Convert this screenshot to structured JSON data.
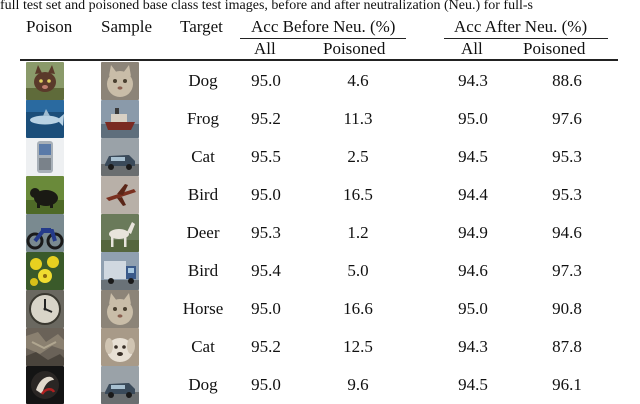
{
  "caption": "full test set and poisoned base class test images, before and after neutralization (Neu.) for full-s",
  "headers": {
    "poison": "Poison",
    "sample": "Sample",
    "target": "Target",
    "acc_before": "Acc Before Neu. (%)",
    "acc_after": "Acc After Neu. (%)",
    "all": "All",
    "poisoned": "Poisoned"
  },
  "rows": [
    {
      "poison_icon": "cat-face-thumbnail",
      "sample_icon": "cat-thumbnail",
      "target": "Dog",
      "before_all": "95.0",
      "before_poisoned": "4.6",
      "after_all": "94.3",
      "after_poisoned": "88.6"
    },
    {
      "poison_icon": "shark-thumbnail",
      "sample_icon": "ship-thumbnail",
      "target": "Frog",
      "before_all": "95.2",
      "before_poisoned": "11.3",
      "after_all": "95.0",
      "after_poisoned": "97.6"
    },
    {
      "poison_icon": "phone-thumbnail",
      "sample_icon": "car-thumbnail",
      "target": "Cat",
      "before_all": "95.5",
      "before_poisoned": "2.5",
      "after_all": "94.5",
      "after_poisoned": "95.3"
    },
    {
      "poison_icon": "bear-thumbnail",
      "sample_icon": "airplane-thumbnail",
      "target": "Bird",
      "before_all": "95.0",
      "before_poisoned": "16.5",
      "after_all": "94.4",
      "after_poisoned": "95.3"
    },
    {
      "poison_icon": "motorcycle-thumbnail",
      "sample_icon": "horse-thumbnail",
      "target": "Deer",
      "before_all": "95.3",
      "before_poisoned": "1.2",
      "after_all": "94.9",
      "after_poisoned": "94.6"
    },
    {
      "poison_icon": "flowers-thumbnail",
      "sample_icon": "truck-thumbnail",
      "target": "Bird",
      "before_all": "95.4",
      "before_poisoned": "5.0",
      "after_all": "94.6",
      "after_poisoned": "97.3"
    },
    {
      "poison_icon": "clock-thumbnail",
      "sample_icon": "cat-thumbnail",
      "target": "Horse",
      "before_all": "95.0",
      "before_poisoned": "16.6",
      "after_all": "95.0",
      "after_poisoned": "90.8"
    },
    {
      "poison_icon": "texture-thumbnail",
      "sample_icon": "dog-thumbnail",
      "target": "Cat",
      "before_all": "95.2",
      "before_poisoned": "12.5",
      "after_all": "94.3",
      "after_poisoned": "87.8"
    },
    {
      "poison_icon": "logo-thumbnail",
      "sample_icon": "car-thumbnail",
      "target": "Dog",
      "before_all": "95.0",
      "before_poisoned": "9.6",
      "after_all": "94.5",
      "after_poisoned": "96.1"
    }
  ]
}
